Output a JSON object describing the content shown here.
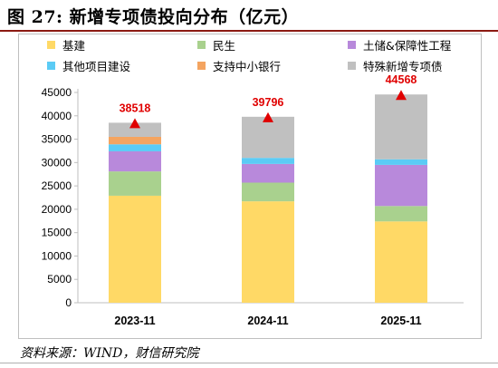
{
  "figure": {
    "title": "图 27:  新增专项债投向分布（亿元）",
    "source": "资料来源：WIND，财信研究院"
  },
  "chart_data": {
    "type": "bar",
    "stacked": true,
    "categories": [
      "2023-11",
      "2024-11",
      "2025-11"
    ],
    "ylim": [
      0,
      45000
    ],
    "yticks": [
      0,
      5000,
      10000,
      15000,
      20000,
      25000,
      30000,
      35000,
      40000,
      45000
    ],
    "grid": false,
    "legend_position": "top",
    "series": [
      {
        "name": "基建",
        "color": "#FFD966",
        "values": [
          22900,
          21700,
          17400
        ]
      },
      {
        "name": "民生",
        "color": "#A9D18E",
        "values": [
          5200,
          4000,
          3300
        ]
      },
      {
        "name": "土储&保障性工程",
        "color": "#B889DB",
        "values": [
          4300,
          4000,
          8800
        ]
      },
      {
        "name": "其他项目建设",
        "color": "#5BCBF5",
        "values": [
          1500,
          1300,
          1200
        ]
      },
      {
        "name": "支持中小银行",
        "color": "#F4A460",
        "values": [
          1600,
          0,
          0
        ]
      },
      {
        "name": "特殊新增专项债",
        "color": "#C0C0C0",
        "values": [
          3018,
          8796,
          13868
        ]
      }
    ],
    "totals": [
      38518,
      39796,
      44568
    ],
    "total_marker_color": "#E00000",
    "total_label_color": "#E00000"
  }
}
